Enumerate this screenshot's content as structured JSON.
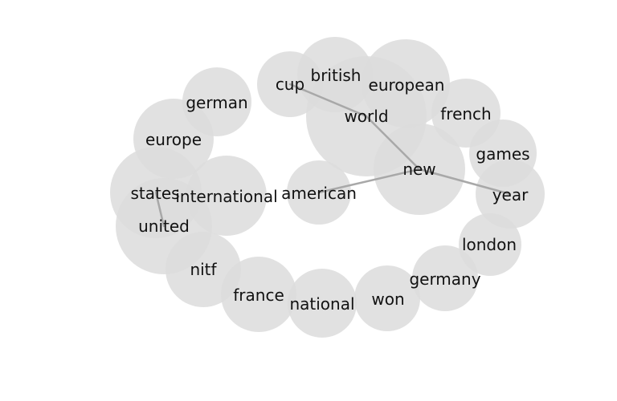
{
  "diagram": {
    "nodes": [
      {
        "id": "world",
        "label": "world"
      },
      {
        "id": "european",
        "label": "european"
      },
      {
        "id": "new",
        "label": "new"
      },
      {
        "id": "united",
        "label": "united"
      },
      {
        "id": "states",
        "label": "states"
      },
      {
        "id": "international",
        "label": "international"
      },
      {
        "id": "british",
        "label": "british"
      },
      {
        "id": "french",
        "label": "french"
      },
      {
        "id": "games",
        "label": "games"
      },
      {
        "id": "year",
        "label": "year"
      },
      {
        "id": "europe",
        "label": "europe"
      },
      {
        "id": "nitf",
        "label": "nitf"
      },
      {
        "id": "france",
        "label": "france"
      },
      {
        "id": "national",
        "label": "national"
      },
      {
        "id": "german",
        "label": "german"
      },
      {
        "id": "cup",
        "label": "cup"
      },
      {
        "id": "germany",
        "label": "germany"
      },
      {
        "id": "won",
        "label": "won"
      },
      {
        "id": "london",
        "label": "london"
      },
      {
        "id": "american",
        "label": "american"
      }
    ],
    "edges": [
      {
        "source": "cup",
        "target": "world"
      },
      {
        "source": "world",
        "target": "new"
      },
      {
        "source": "new",
        "target": "year"
      },
      {
        "source": "new",
        "target": "american"
      },
      {
        "source": "united",
        "target": "states"
      }
    ]
  }
}
